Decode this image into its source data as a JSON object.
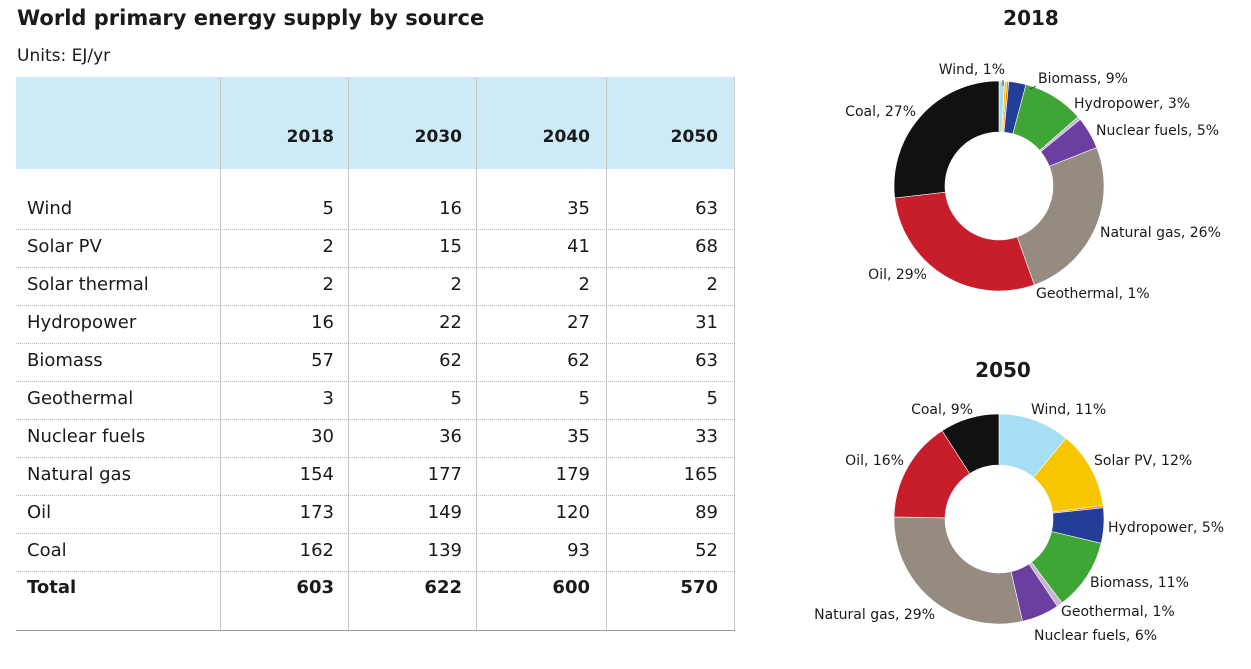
{
  "title": "World primary energy supply by source",
  "units": "Units: EJ/yr",
  "table": {
    "years": [
      "2018",
      "2030",
      "2040",
      "2050"
    ],
    "rows": [
      {
        "label": "Wind",
        "values": [
          "5",
          "16",
          "35",
          "63"
        ]
      },
      {
        "label": "Solar PV",
        "values": [
          "2",
          "15",
          "41",
          "68"
        ]
      },
      {
        "label": "Solar thermal",
        "values": [
          "2",
          "2",
          "2",
          "2"
        ]
      },
      {
        "label": "Hydropower",
        "values": [
          "16",
          "22",
          "27",
          "31"
        ]
      },
      {
        "label": "Biomass",
        "values": [
          "57",
          "62",
          "62",
          "63"
        ]
      },
      {
        "label": "Geothermal",
        "values": [
          "3",
          "5",
          "5",
          "5"
        ]
      },
      {
        "label": "Nuclear fuels",
        "values": [
          "30",
          "36",
          "35",
          "33"
        ]
      },
      {
        "label": "Natural gas",
        "values": [
          "154",
          "177",
          "179",
          "165"
        ]
      },
      {
        "label": "Oil",
        "values": [
          "173",
          "149",
          "120",
          "89"
        ]
      },
      {
        "label": "Coal",
        "values": [
          "162",
          "139",
          "93",
          "52"
        ]
      }
    ],
    "total": {
      "label": "Total",
      "values": [
        "603",
        "622",
        "600",
        "570"
      ]
    }
  },
  "colors": {
    "Wind": "#a6dff5",
    "Solar PV": "#f7c600",
    "Solar thermal": "#f08a1c",
    "Hydropower": "#233e96",
    "Biomass": "#3fa535",
    "Geothermal": "#c7b3d6",
    "Nuclear fuels": "#6b3fa0",
    "Natural gas": "#958b80",
    "Oil": "#c81d2b",
    "Coal": "#111111",
    "header_bg": "#cdeaf7"
  },
  "chart_data": [
    {
      "type": "pie",
      "title": "2018",
      "categories": [
        "Wind",
        "Solar PV",
        "Solar thermal",
        "Hydropower",
        "Biomass",
        "Geothermal",
        "Nuclear fuels",
        "Natural gas",
        "Oil",
        "Coal"
      ],
      "values": [
        5,
        2,
        2,
        16,
        57,
        3,
        30,
        154,
        173,
        162
      ],
      "labels": {
        "Wind": "Wind, 1%",
        "Biomass": "Biomass, 9%",
        "Hydropower": "Hydropower, 3%",
        "Nuclear fuels": "Nuclear fuels, 5%",
        "Natural gas": "Natural gas, 26%",
        "Geothermal": "Geothermal, 1%",
        "Oil": "Oil, 29%",
        "Coal": "Coal, 27%"
      }
    },
    {
      "type": "pie",
      "title": "2050",
      "categories": [
        "Wind",
        "Solar PV",
        "Solar thermal",
        "Hydropower",
        "Biomass",
        "Geothermal",
        "Nuclear fuels",
        "Natural gas",
        "Oil",
        "Coal"
      ],
      "values": [
        63,
        68,
        2,
        31,
        63,
        5,
        33,
        165,
        89,
        52
      ],
      "labels": {
        "Wind": "Wind, 11%",
        "Solar PV": "Solar PV, 12%",
        "Hydropower": "Hydropower, 5%",
        "Biomass": "Biomass, 11%",
        "Geothermal": "Geothermal, 1%",
        "Nuclear fuels": "Nuclear fuels, 6%",
        "Natural gas": "Natural gas, 29%",
        "Oil": "Oil, 16%",
        "Coal": "Coal, 9%"
      }
    }
  ]
}
